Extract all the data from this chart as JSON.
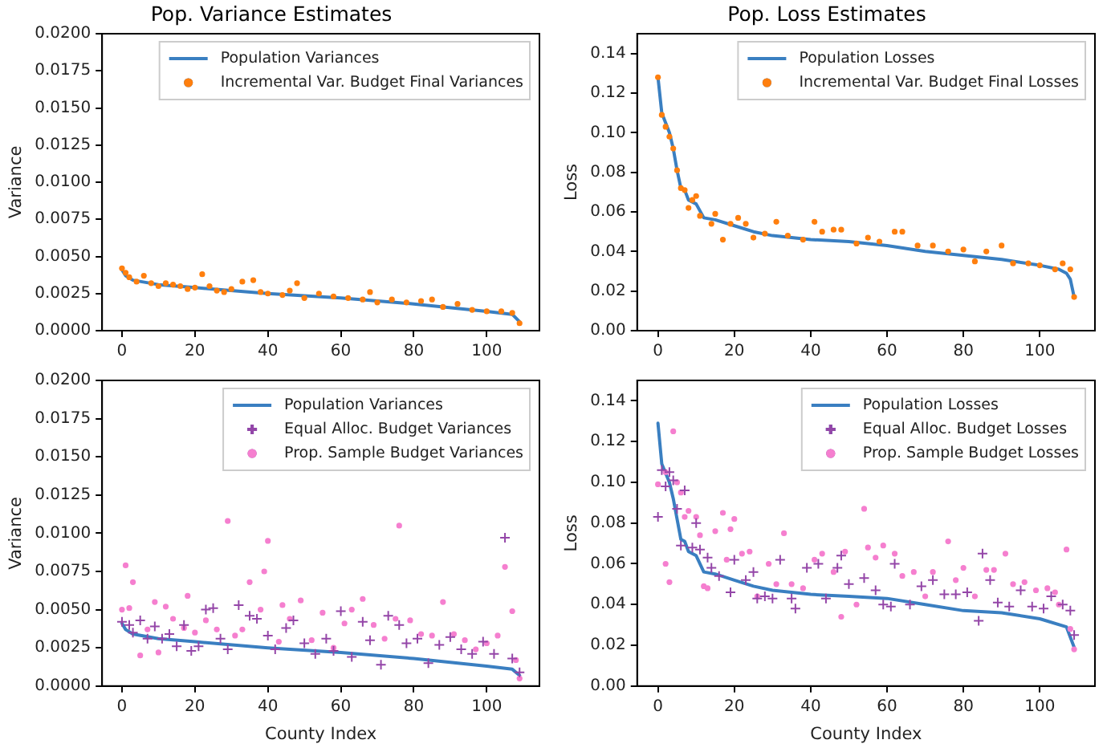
{
  "chart_data": [
    {
      "type": "scatter",
      "title": "Pop. Variance Estimates",
      "ylabel": "Variance",
      "legend": "top right",
      "grid": false,
      "xlim": [
        -5.45,
        114.45
      ],
      "xticks": [
        0,
        20,
        40,
        60,
        80,
        100
      ],
      "ylim": [
        0,
        0.02
      ],
      "yticks": [
        {
          "value": 0,
          "label": "0.0000"
        },
        {
          "value": 0.0025,
          "label": "0.0025"
        },
        {
          "value": 0.005,
          "label": "0.0050"
        },
        {
          "value": 0.0075,
          "label": "0.0075"
        },
        {
          "value": 0.01,
          "label": "0.0100"
        },
        {
          "value": 0.0125,
          "label": "0.0125"
        },
        {
          "value": 0.015,
          "label": "0.0150"
        },
        {
          "value": 0.0175,
          "label": "0.0175"
        },
        {
          "value": 0.02,
          "label": "0.0200"
        }
      ],
      "series": [
        {
          "name": "Population Variances",
          "type": "line",
          "marker": "none",
          "color": "#3a7fc1",
          "x": [
            0,
            1,
            3,
            10,
            20,
            40,
            60,
            80,
            100,
            107,
            109
          ],
          "values": [
            0.0041,
            0.0037,
            0.0034,
            0.0031,
            0.0029,
            0.0025,
            0.0022,
            0.0018,
            0.0013,
            0.0011,
            0.0006
          ]
        },
        {
          "name": "Incremental Var. Budget Final Variances",
          "type": "scatter",
          "marker": "circle",
          "color": "#ff7f0e",
          "x": [
            0,
            1,
            2,
            4,
            6,
            8,
            10,
            12,
            14,
            16,
            18,
            20,
            22,
            24,
            26,
            28,
            30,
            33,
            36,
            38,
            40,
            44,
            46,
            48,
            50,
            54,
            58,
            62,
            66,
            68,
            70,
            74,
            78,
            82,
            85,
            88,
            92,
            96,
            100,
            104,
            107,
            109
          ],
          "values": [
            0.0042,
            0.0039,
            0.0036,
            0.0033,
            0.0037,
            0.0032,
            0.003,
            0.0032,
            0.0031,
            0.003,
            0.0028,
            0.0029,
            0.0038,
            0.003,
            0.0027,
            0.0026,
            0.0028,
            0.0033,
            0.0034,
            0.0026,
            0.0025,
            0.0024,
            0.0027,
            0.0032,
            0.0022,
            0.0025,
            0.0023,
            0.0022,
            0.0021,
            0.0026,
            0.0019,
            0.0021,
            0.0019,
            0.002,
            0.0021,
            0.0016,
            0.0018,
            0.0014,
            0.0013,
            0.0013,
            0.0012,
            0.0005
          ]
        }
      ]
    },
    {
      "type": "scatter",
      "title": "Pop. Loss Estimates",
      "ylabel": "Loss",
      "legend": "top right",
      "grid": false,
      "xlim": [
        -5.45,
        114.45
      ],
      "xticks": [
        0,
        20,
        40,
        60,
        80,
        100
      ],
      "ylim": [
        0,
        0.15
      ],
      "yticks": [
        {
          "value": 0,
          "label": "0.00"
        },
        {
          "value": 0.02,
          "label": "0.02"
        },
        {
          "value": 0.04,
          "label": "0.04"
        },
        {
          "value": 0.06,
          "label": "0.06"
        },
        {
          "value": 0.08,
          "label": "0.08"
        },
        {
          "value": 0.1,
          "label": "0.10"
        },
        {
          "value": 0.12,
          "label": "0.12"
        },
        {
          "value": 0.14,
          "label": "0.14"
        }
      ],
      "series": [
        {
          "name": "Population Losses",
          "type": "line",
          "marker": "none",
          "color": "#3a7fc1",
          "x": [
            0,
            1,
            3,
            4,
            5,
            6,
            7,
            8,
            10,
            12,
            15,
            20,
            25,
            30,
            40,
            50,
            60,
            70,
            80,
            90,
            100,
            105,
            107,
            108,
            109
          ],
          "values": [
            0.128,
            0.11,
            0.1,
            0.092,
            0.081,
            0.072,
            0.071,
            0.066,
            0.064,
            0.057,
            0.056,
            0.053,
            0.05,
            0.048,
            0.046,
            0.045,
            0.043,
            0.04,
            0.038,
            0.036,
            0.033,
            0.031,
            0.029,
            0.026,
            0.017
          ]
        },
        {
          "name": "Incremental Var. Budget Final Losses",
          "type": "scatter",
          "marker": "circle",
          "color": "#ff7f0e",
          "x": [
            0,
            1,
            2,
            3,
            4,
            5,
            6,
            7,
            8,
            9,
            10,
            11,
            14,
            15,
            17,
            19,
            21,
            23,
            25,
            28,
            31,
            34,
            38,
            41,
            43,
            46,
            48,
            52,
            55,
            58,
            62,
            64,
            68,
            72,
            76,
            80,
            83,
            86,
            90,
            93,
            97,
            100,
            104,
            106,
            108,
            109
          ],
          "values": [
            0.128,
            0.109,
            0.103,
            0.098,
            0.092,
            0.081,
            0.072,
            0.071,
            0.062,
            0.066,
            0.068,
            0.058,
            0.054,
            0.059,
            0.046,
            0.054,
            0.057,
            0.054,
            0.047,
            0.049,
            0.055,
            0.048,
            0.046,
            0.055,
            0.05,
            0.051,
            0.051,
            0.044,
            0.047,
            0.045,
            0.05,
            0.05,
            0.043,
            0.043,
            0.04,
            0.041,
            0.035,
            0.04,
            0.043,
            0.034,
            0.034,
            0.033,
            0.031,
            0.034,
            0.031,
            0.017
          ]
        }
      ]
    },
    {
      "type": "scatter",
      "xlabel": "County Index",
      "ylabel": "Variance",
      "legend": "top right",
      "grid": false,
      "xlim": [
        -5.45,
        114.45
      ],
      "xticks": [
        0,
        20,
        40,
        60,
        80,
        100
      ],
      "ylim": [
        0,
        0.02
      ],
      "yticks": [
        {
          "value": 0,
          "label": "0.0000"
        },
        {
          "value": 0.0025,
          "label": "0.0025"
        },
        {
          "value": 0.005,
          "label": "0.0050"
        },
        {
          "value": 0.0075,
          "label": "0.0075"
        },
        {
          "value": 0.01,
          "label": "0.0100"
        },
        {
          "value": 0.0125,
          "label": "0.0125"
        },
        {
          "value": 0.015,
          "label": "0.0150"
        },
        {
          "value": 0.0175,
          "label": "0.0175"
        },
        {
          "value": 0.02,
          "label": "0.0200"
        }
      ],
      "series": [
        {
          "name": "Population Variances",
          "type": "line",
          "marker": "none",
          "color": "#3a7fc1",
          "x": [
            0,
            1,
            3,
            10,
            20,
            40,
            60,
            80,
            100,
            107,
            109
          ],
          "values": [
            0.0041,
            0.0037,
            0.0034,
            0.0031,
            0.0029,
            0.0025,
            0.0022,
            0.0018,
            0.0013,
            0.0011,
            0.0007
          ]
        },
        {
          "name": "Equal Alloc. Budget Variances",
          "type": "scatter",
          "marker": "cross",
          "color": "#9446a8",
          "x": [
            0,
            2,
            3,
            5,
            7,
            9,
            11,
            13,
            15,
            17,
            19,
            21,
            23,
            25,
            27,
            29,
            32,
            35,
            37,
            40,
            42,
            45,
            47,
            50,
            53,
            56,
            58,
            60,
            63,
            66,
            68,
            71,
            73,
            76,
            78,
            81,
            84,
            87,
            90,
            93,
            96,
            99,
            102,
            105,
            107,
            109
          ],
          "values": [
            0.0042,
            0.004,
            0.0035,
            0.0043,
            0.0031,
            0.0039,
            0.0031,
            0.0034,
            0.0026,
            0.004,
            0.0023,
            0.0026,
            0.005,
            0.0051,
            0.0031,
            0.0024,
            0.0053,
            0.0046,
            0.0044,
            0.0033,
            0.0024,
            0.0038,
            0.0043,
            0.0028,
            0.0021,
            0.0031,
            0.0023,
            0.0049,
            0.0019,
            0.0042,
            0.003,
            0.0014,
            0.0046,
            0.004,
            0.0028,
            0.0031,
            0.0015,
            0.0027,
            0.0032,
            0.0024,
            0.0021,
            0.0029,
            0.0021,
            0.0097,
            0.0018,
            0.0009
          ]
        },
        {
          "name": "Prop. Sample Budget Variances",
          "type": "scatter",
          "marker": "circle",
          "color": "#f57fcf",
          "x": [
            0,
            1,
            2,
            3,
            5,
            7,
            9,
            10,
            12,
            14,
            17,
            18,
            20,
            23,
            26,
            29,
            31,
            33,
            35,
            38,
            39,
            40,
            43,
            44,
            46,
            49,
            52,
            55,
            58,
            61,
            63,
            66,
            69,
            72,
            75,
            76,
            79,
            82,
            85,
            88,
            91,
            94,
            97,
            100,
            103,
            105,
            107,
            108,
            109
          ],
          "values": [
            0.005,
            0.0079,
            0.0051,
            0.0068,
            0.002,
            0.0037,
            0.0055,
            0.0022,
            0.0052,
            0.0044,
            0.0038,
            0.0059,
            0.0035,
            0.0043,
            0.0037,
            0.0108,
            0.0033,
            0.0037,
            0.0068,
            0.005,
            0.0075,
            0.0095,
            0.0029,
            0.0053,
            0.0044,
            0.0056,
            0.003,
            0.0048,
            0.0025,
            0.0041,
            0.005,
            0.0057,
            0.004,
            0.0031,
            0.0044,
            0.0105,
            0.0043,
            0.0034,
            0.0033,
            0.0055,
            0.0034,
            0.003,
            0.0024,
            0.0028,
            0.0033,
            0.0078,
            0.0049,
            0.0017,
            0.0005
          ]
        }
      ]
    },
    {
      "type": "scatter",
      "xlabel": "County Index",
      "ylabel": "Loss",
      "legend": "top right",
      "grid": false,
      "xlim": [
        -5.45,
        114.45
      ],
      "xticks": [
        0,
        20,
        40,
        60,
        80,
        100
      ],
      "ylim": [
        0,
        0.15
      ],
      "yticks": [
        {
          "value": 0,
          "label": "0.00"
        },
        {
          "value": 0.02,
          "label": "0.02"
        },
        {
          "value": 0.04,
          "label": "0.04"
        },
        {
          "value": 0.06,
          "label": "0.06"
        },
        {
          "value": 0.08,
          "label": "0.08"
        },
        {
          "value": 0.1,
          "label": "0.10"
        },
        {
          "value": 0.12,
          "label": "0.12"
        },
        {
          "value": 0.14,
          "label": "0.14"
        }
      ],
      "series": [
        {
          "name": "Population Losses",
          "type": "line",
          "marker": "none",
          "color": "#3a7fc1",
          "x": [
            0,
            1,
            3,
            4,
            5,
            6,
            7,
            8,
            10,
            12,
            15,
            20,
            25,
            30,
            40,
            50,
            60,
            70,
            80,
            90,
            100,
            107,
            109
          ],
          "values": [
            0.129,
            0.109,
            0.1,
            0.092,
            0.082,
            0.072,
            0.071,
            0.066,
            0.064,
            0.056,
            0.055,
            0.052,
            0.049,
            0.047,
            0.045,
            0.044,
            0.043,
            0.04,
            0.037,
            0.036,
            0.033,
            0.029,
            0.019
          ]
        },
        {
          "name": "Equal Alloc. Budget Losses",
          "type": "scatter",
          "marker": "cross",
          "color": "#9446a8",
          "x": [
            0,
            1,
            2,
            3,
            4,
            5,
            6,
            7,
            9,
            10,
            11,
            13,
            14,
            16,
            19,
            20,
            23,
            25,
            26,
            28,
            30,
            32,
            35,
            36,
            39,
            42,
            44,
            47,
            48,
            50,
            54,
            57,
            59,
            61,
            62,
            66,
            69,
            72,
            75,
            78,
            81,
            84,
            85,
            87,
            89,
            92,
            95,
            98,
            101,
            103,
            106,
            108,
            109
          ],
          "values": [
            0.083,
            0.106,
            0.098,
            0.105,
            0.101,
            0.087,
            0.069,
            0.096,
            0.068,
            0.08,
            0.067,
            0.063,
            0.058,
            0.054,
            0.046,
            0.062,
            0.052,
            0.056,
            0.043,
            0.044,
            0.043,
            0.062,
            0.043,
            0.038,
            0.058,
            0.06,
            0.043,
            0.058,
            0.064,
            0.05,
            0.053,
            0.047,
            0.04,
            0.039,
            0.06,
            0.04,
            0.049,
            0.052,
            0.045,
            0.045,
            0.046,
            0.032,
            0.065,
            0.052,
            0.041,
            0.039,
            0.047,
            0.039,
            0.038,
            0.044,
            0.04,
            0.037,
            0.025
          ]
        },
        {
          "name": "Prop. Sample Budget Losses",
          "type": "scatter",
          "marker": "circle",
          "color": "#f57fcf",
          "x": [
            0,
            2,
            2,
            3,
            4,
            5,
            6,
            7,
            8,
            10,
            11,
            12,
            13,
            15,
            17,
            18,
            19,
            20,
            22,
            24,
            26,
            29,
            31,
            33,
            35,
            38,
            41,
            43,
            46,
            48,
            49,
            52,
            54,
            55,
            57,
            59,
            62,
            64,
            67,
            70,
            72,
            76,
            78,
            80,
            83,
            86,
            88,
            91,
            93,
            96,
            99,
            102,
            104,
            105,
            107,
            108,
            109
          ],
          "values": [
            0.099,
            0.105,
            0.06,
            0.051,
            0.125,
            0.1,
            0.095,
            0.083,
            0.086,
            0.083,
            0.074,
            0.049,
            0.048,
            0.076,
            0.085,
            0.062,
            0.077,
            0.082,
            0.065,
            0.066,
            0.044,
            0.06,
            0.05,
            0.075,
            0.05,
            0.048,
            0.062,
            0.065,
            0.056,
            0.034,
            0.066,
            0.04,
            0.087,
            0.068,
            0.063,
            0.069,
            0.065,
            0.054,
            0.056,
            0.044,
            0.056,
            0.071,
            0.052,
            0.058,
            0.044,
            0.057,
            0.057,
            0.065,
            0.05,
            0.051,
            0.047,
            0.048,
            0.046,
            0.04,
            0.067,
            0.028,
            0.018
          ]
        }
      ]
    }
  ]
}
